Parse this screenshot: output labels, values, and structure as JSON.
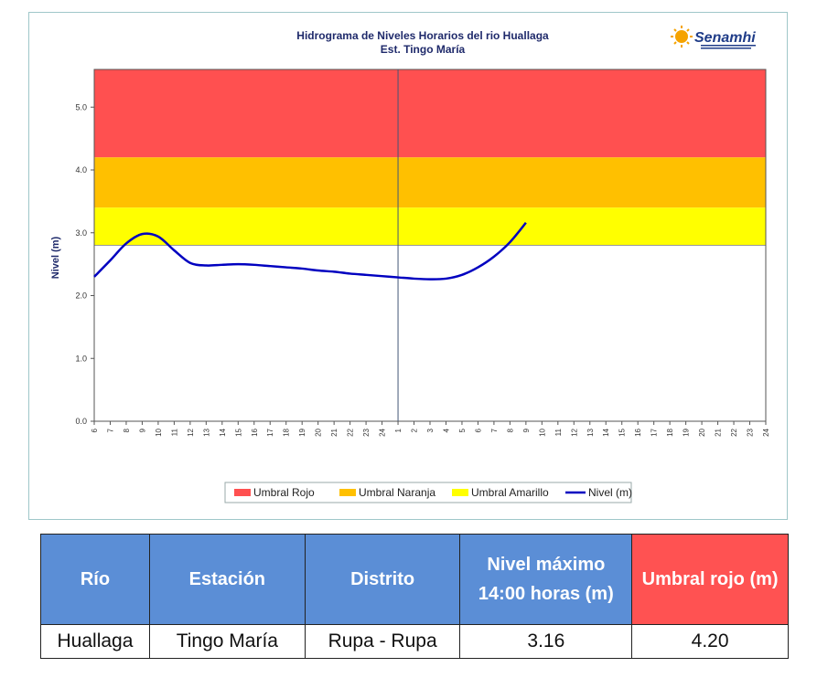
{
  "chart_data": {
    "type": "line",
    "title": "Hidrograma de Niveles Horarios del rio Huallaga",
    "subtitle": "Est. Tingo María",
    "ylabel": "Nivel (m)",
    "xlabel": "",
    "ylim": [
      0,
      5.6
    ],
    "y_ticks": [
      "0.0",
      "1.0",
      "2.0",
      "3.0",
      "4.0",
      "5.0"
    ],
    "x_ticks": [
      "6",
      "7",
      "8",
      "9",
      "10",
      "11",
      "12",
      "13",
      "14",
      "15",
      "16",
      "17",
      "18",
      "19",
      "20",
      "21",
      "22",
      "23",
      "24",
      "1",
      "2",
      "3",
      "4",
      "5",
      "6",
      "7",
      "8",
      "9",
      "10",
      "11",
      "12",
      "13",
      "14",
      "15",
      "16",
      "17",
      "18",
      "19",
      "20",
      "21",
      "22",
      "23",
      "24"
    ],
    "grid": false,
    "legend_position": "bottom",
    "thresholds": [
      {
        "name": "Umbral Rojo",
        "from": 4.2,
        "to": 5.6,
        "color": "#ff5050"
      },
      {
        "name": "Umbral Naranja",
        "from": 3.4,
        "to": 4.2,
        "color": "#ffc000"
      },
      {
        "name": "Umbral Amarillo",
        "from": 2.8,
        "to": 3.4,
        "color": "#ffff00"
      }
    ],
    "series": [
      {
        "name": "Nivel (m)",
        "color": "#0000c0",
        "values": [
          2.3,
          2.56,
          2.83,
          2.98,
          2.94,
          2.72,
          2.52,
          2.48,
          2.49,
          2.5,
          2.49,
          2.47,
          2.45,
          2.43,
          2.4,
          2.38,
          2.35,
          2.33,
          2.31,
          2.29,
          2.27,
          2.26,
          2.27,
          2.33,
          2.45,
          2.62,
          2.85,
          3.16
        ]
      }
    ]
  },
  "logo": {
    "name": "Senamhi",
    "icon": "sun-logo-icon"
  },
  "table": {
    "headers": [
      "Río",
      "Estación",
      "Distrito",
      "Nivel máximo 14:00 horas (m)",
      "Umbral rojo (m)"
    ],
    "header_colors": [
      "#5b8ed6",
      "#5b8ed6",
      "#5b8ed6",
      "#5b8ed6",
      "#ff5252"
    ],
    "row": [
      "Huallaga",
      "Tingo María",
      "Rupa - Rupa",
      "3.16",
      "4.20"
    ]
  }
}
